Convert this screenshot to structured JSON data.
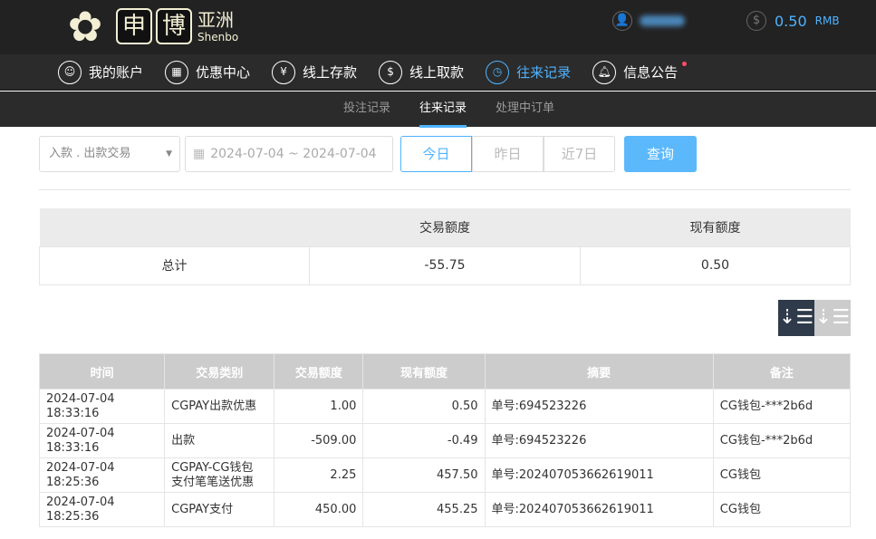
{
  "header": {
    "logo_cn": "亚洲",
    "logo_box1": "申",
    "logo_box2": "博",
    "logo_en": "Shenbo",
    "balance": "0.50",
    "currency": "RMB"
  },
  "nav": [
    {
      "label": "我的账户",
      "icon": "user-icon"
    },
    {
      "label": "优惠中心",
      "icon": "gift-icon"
    },
    {
      "label": "线上存款",
      "icon": "deposit-icon"
    },
    {
      "label": "线上取款",
      "icon": "withdraw-icon"
    },
    {
      "label": "往来记录",
      "icon": "record-icon",
      "active": true
    },
    {
      "label": "信息公告",
      "icon": "bell-icon",
      "badge": true
    }
  ],
  "subnav": [
    {
      "label": "投注记录"
    },
    {
      "label": "往来记录",
      "active": true
    },
    {
      "label": "处理中订单"
    }
  ],
  "filter": {
    "type": "入款 . 出款交易",
    "date_range": "2024-07-04 ~ 2024-07-04",
    "today": "今日",
    "yesterday": "昨日",
    "week": "近7日",
    "query": "查询"
  },
  "summary": {
    "col1": "交易额度",
    "col2": "现有额度",
    "label": "总计",
    "amount": "-55.75",
    "balance": "0.50"
  },
  "colors": {
    "accent": "#4fb3ff",
    "topbar": "#222222",
    "sort_active": "#2f3b4b"
  },
  "table": {
    "headers": [
      "时间",
      "交易类别",
      "交易额度",
      "现有额度",
      "摘要",
      "备注"
    ],
    "rows": [
      [
        "2024-07-04 18:33:16",
        "CGPAY出款优惠",
        "1.00",
        "0.50",
        "单号:694523226",
        "CG钱包-***2b6d"
      ],
      [
        "2024-07-04 18:33:16",
        "出款",
        "-509.00",
        "-0.49",
        "单号:694523226",
        "CG钱包-***2b6d"
      ],
      [
        "2024-07-04 18:25:36",
        "CGPAY-CG钱包支付笔笔送优惠",
        "2.25",
        "457.50",
        "单号:202407053662619011",
        "CG钱包"
      ],
      [
        "2024-07-04 18:25:36",
        "CGPAY支付",
        "450.00",
        "455.25",
        "单号:202407053662619011",
        "CG钱包"
      ]
    ]
  }
}
